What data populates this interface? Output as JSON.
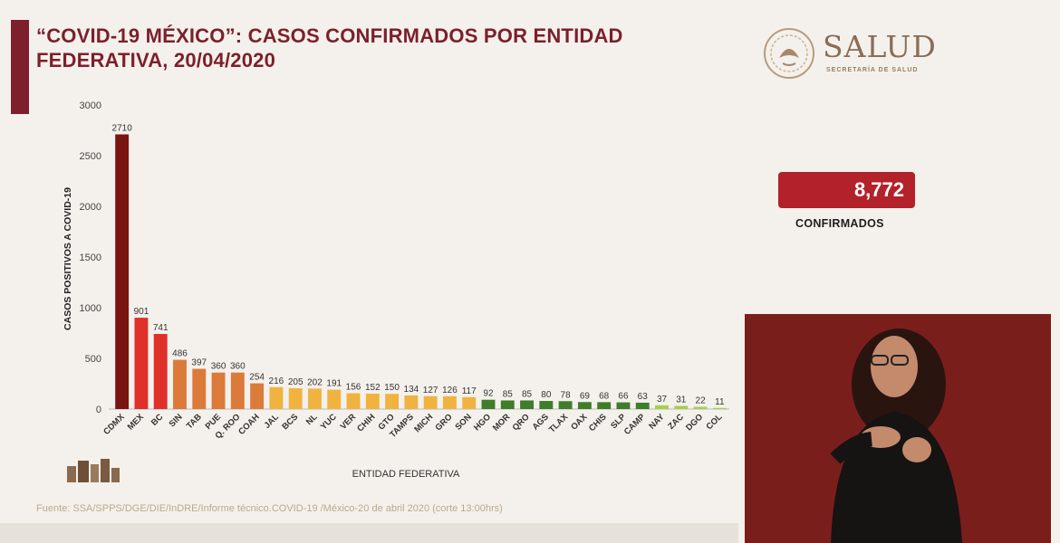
{
  "title": "“COVID-19 MÉXICO”: CASOS CONFIRMADOS POR ENTIDAD FEDERATIVA, 20/04/2020",
  "logo": {
    "word": "SALUD",
    "sub": "SECRETARÍA DE SALUD"
  },
  "total": {
    "value": "8,772",
    "label": "CONFIRMADOS"
  },
  "source": "Fuente: SSA/SPPS/DGE/DIE/InDRE/Informe técnico.COVID-19 /México-20 de abril 2020 (corte 13:00hrs)",
  "colors": {
    "accent": "#7d1f2c",
    "total_box": "#b3212a"
  },
  "chart_data": {
    "type": "bar",
    "xlabel": "ENTIDAD FEDERATIVA",
    "ylabel": "CASOS POSITIVOS A COVID-19",
    "ylim": [
      0,
      3000
    ],
    "yticks": [
      0,
      500,
      1000,
      1500,
      2000,
      2500,
      3000
    ],
    "categories": [
      "CDMX",
      "MEX",
      "BC",
      "SIN",
      "TAB",
      "PUE",
      "Q. ROO",
      "COAH",
      "JAL",
      "BCS",
      "NL",
      "YUC",
      "VER",
      "CHIH",
      "GTO",
      "TAMPS",
      "MICH",
      "GRO",
      "SON",
      "HGO",
      "MOR",
      "QRO",
      "AGS",
      "TLAX",
      "OAX",
      "CHIS",
      "SLP",
      "CAMP",
      "NAY",
      "ZAC",
      "DGO",
      "COL"
    ],
    "values": [
      2710,
      901,
      741,
      486,
      397,
      360,
      360,
      254,
      216,
      205,
      202,
      191,
      156,
      152,
      150,
      134,
      127,
      126,
      117,
      92,
      85,
      85,
      80,
      78,
      69,
      68,
      66,
      63,
      37,
      31,
      22,
      11
    ],
    "bar_colors": [
      "#7a1412",
      "#e0302a",
      "#e0302a",
      "#dc7a3a",
      "#dc7a3a",
      "#dc7a3a",
      "#dc7a3a",
      "#dc7a3a",
      "#f0b340",
      "#f0b340",
      "#f0b340",
      "#f0b340",
      "#f0b340",
      "#f0b340",
      "#f0b340",
      "#f0b340",
      "#f0b340",
      "#f0b340",
      "#f0b340",
      "#3f7d2a",
      "#3f7d2a",
      "#3f7d2a",
      "#3f7d2a",
      "#3f7d2a",
      "#3f7d2a",
      "#3f7d2a",
      "#3f7d2a",
      "#3f7d2a",
      "#a4cf4a",
      "#a4cf4a",
      "#a4cf4a",
      "#a4cf4a"
    ],
    "grid": false
  }
}
